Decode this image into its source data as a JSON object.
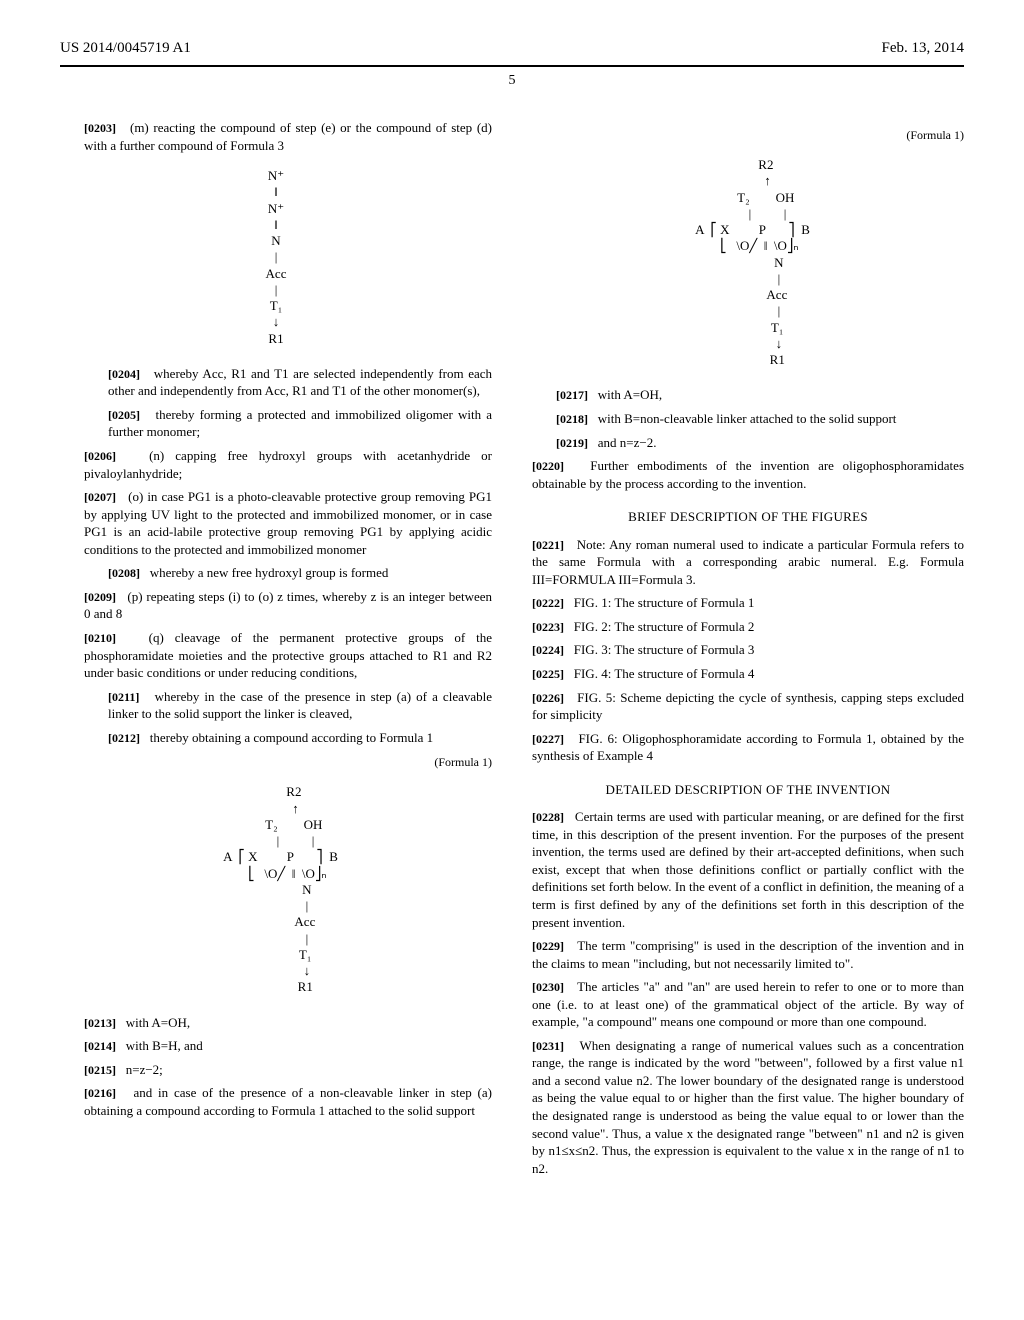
{
  "header": {
    "left": "US 2014/0045719 A1",
    "right": "Feb. 13, 2014"
  },
  "page_number": "5",
  "col1": {
    "p0203": "(m) reacting the compound of step (e) or the compound of step (d) with a further compound of Formula 3",
    "chem1": "N⁺\n‖\nN⁺\n‖\nN\n|\nAcc\n|\nT₁\n↓\nR1",
    "p0204": "whereby Acc, R1 and T1 are selected independently from each other and independently from Acc, R1 and T1 of the other monomer(s),",
    "p0205": "thereby forming a protected and immobilized oligomer with a further monomer;",
    "p0206": "(n) capping free hydroxyl groups with acetanhydride or pivaloylanhydride;",
    "p0207": "(o) in case PG1 is a photo-cleavable protective group removing PG1 by applying UV light to the protected and immobilized monomer, or in case PG1 is an acid-labile protective group removing PG1 by applying acidic conditions to the protected and immobilized monomer",
    "p0208": "whereby a new free hydroxyl group is formed",
    "p0209": "(p) repeating steps (i) to (o) z times, whereby z is an integer between 0 and 8",
    "p0210": "(q) cleavage of the permanent protective groups of the phosphoramidate moieties and the protective groups attached to R1 and R2 under basic conditions or under reducing conditions,",
    "p0211": "whereby in the case of the presence in step (a) of a cleavable linker to the solid support the linker is cleaved,",
    "p0212": "thereby obtaining a compound according to Formula 1",
    "formula1_tag": "(Formula 1)",
    "chem2": "           R2\n            ↑\n           T₂        OH\n            |          |\n   A  ⎡ X         P       ⎤  B\n       ⎣   \\O╱  ‖  \\O⎦ₙ\n                   N\n                   |\n                  Acc\n                   |\n                  T₁\n                   ↓\n                  R1",
    "p0213": "with A=OH,",
    "p0214": "with B=H, and",
    "p0215": "n=z−2;",
    "p0216": "and in case of the presence of a non-cleavable linker in step (a) obtaining a compound according to Formula 1 attached to the solid support"
  },
  "col2": {
    "formula1_tag": "(Formula 1)",
    "chem2": "           R2\n            ↑\n           T₂        OH\n            |          |\n   A  ⎡ X         P       ⎤  B\n       ⎣   \\O╱  ‖  \\O⎦ₙ\n                   N\n                   |\n                  Acc\n                   |\n                  T₁\n                   ↓\n                  R1",
    "p0217": "with A=OH,",
    "p0218": "with B=non-cleavable linker attached to the solid support",
    "p0219": "and n=z−2.",
    "p0220": "Further embodiments of the invention are oligophosphoramidates obtainable by the process according to the invention.",
    "heading_figs": "BRIEF DESCRIPTION OF THE FIGURES",
    "p0221": "Note: Any roman numeral used to indicate a particular Formula refers to the same Formula with a corresponding arabic numeral. E.g. Formula III=FORMULA III=Formula 3.",
    "p0222": "FIG. 1: The structure of Formula 1",
    "p0223": "FIG. 2: The structure of Formula 2",
    "p0224": "FIG. 3: The structure of Formula 3",
    "p0225": "FIG. 4: The structure of Formula 4",
    "p0226": "FIG. 5: Scheme depicting the cycle of synthesis, capping steps excluded for simplicity",
    "p0227": "FIG. 6: Oligophosphoramidate according to Formula 1, obtained by the synthesis of Example 4",
    "heading_detail": "DETAILED DESCRIPTION OF THE INVENTION",
    "p0228": "Certain terms are used with particular meaning, or are defined for the first time, in this description of the present invention. For the purposes of the present invention, the terms used are defined by their art-accepted definitions, when such exist, except that when those definitions conflict or partially conflict with the definitions set forth below. In the event of a conflict in definition, the meaning of a term is first defined by any of the definitions set forth in this description of the present invention.",
    "p0229": "The term \"comprising\" is used in the description of the invention and in the claims to mean \"including, but not necessarily limited to\".",
    "p0230": "The articles \"a\" and \"an\" are used herein to refer to one or to more than one (i.e. to at least one) of the grammatical object of the article. By way of example, \"a compound\" means one compound or more than one compound.",
    "p0231": "When designating a range of numerical values such as a concentration range, the range is indicated by the word \"between\", followed by a first value n1 and a second value n2. The lower boundary of the designated range is understood as being the value equal to or higher than the first value. The higher boundary of the designated range is understood as being the value equal to or lower than the second value\". Thus, a value x the designated range \"between\" n1 and n2 is given by n1≤x≤n2. Thus, the expression is equivalent to the value x in the range of n1 to n2."
  }
}
